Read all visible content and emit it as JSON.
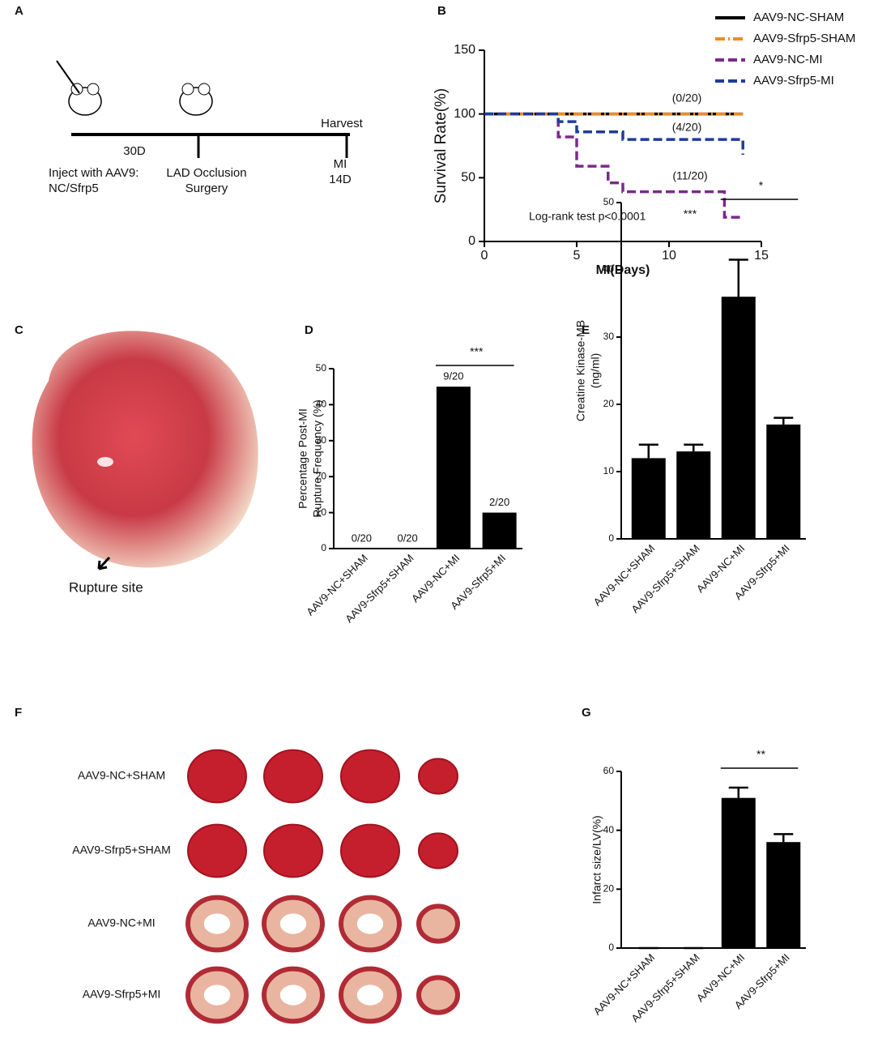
{
  "panel_labels": [
    "A",
    "B",
    "C",
    "D",
    "E",
    "F",
    "G"
  ],
  "timeline": {
    "labels": [
      "30D",
      "Inject with AAV9:",
      "NC/Sfrp5",
      "LAD Occlusion",
      "Surgery",
      "Harvest",
      "MI",
      "14D"
    ]
  },
  "photo_c": {
    "label": "Rupture site"
  },
  "photo_f": {
    "rows": [
      "AAV9-NC+SHAM",
      "AAV9-Sfrp5+SHAM",
      "AAV9-NC+MI",
      "AAV9-Sfrp5+MI"
    ]
  },
  "chart_data": [
    {
      "type": "line",
      "xlabel": "MI(Days)",
      "ylabel": "Survival Rate(%)",
      "xlim": [
        0,
        15
      ],
      "xticks": [
        0,
        5,
        10,
        15
      ],
      "ylim": [
        0,
        150
      ],
      "yticks": [
        0,
        50,
        100,
        150
      ],
      "legend": "top-right",
      "annotations": [
        "(0/20)",
        "(4/20)",
        "(11/20)",
        "Log-rank test p<0.0001",
        "***"
      ],
      "series": [
        {
          "name": "AAV9-NC-SHAM",
          "color": "#000000",
          "style": "solid",
          "x": [
            0,
            14
          ],
          "values": [
            100,
            100
          ]
        },
        {
          "name": "AAV9-Sfrp5-SHAM",
          "color": "#f08a24",
          "style": "dashdot",
          "x": [
            0,
            14
          ],
          "values": [
            100,
            100
          ]
        },
        {
          "name": "AAV9-NC-MI",
          "color": "#7b2a8b",
          "style": "dashed",
          "x": [
            0,
            4,
            4,
            5,
            5,
            6.7,
            6.7,
            7.5,
            7.5,
            13,
            13,
            14
          ],
          "values": [
            100,
            100,
            82,
            82,
            59,
            59,
            46,
            46,
            39,
            39,
            19,
            19
          ]
        },
        {
          "name": "AAV9-Sfrp5-MI",
          "color": "#1f3c99",
          "style": "dashed",
          "x": [
            0,
            4,
            4,
            5,
            5,
            7.5,
            7.5,
            14,
            14
          ],
          "values": [
            100,
            100,
            94,
            94,
            86,
            86,
            80,
            80,
            68
          ]
        }
      ]
    },
    {
      "type": "bar",
      "ylabel": [
        "Percentage Post-MI",
        "Rupture Frequency (%)"
      ],
      "color": "#000000",
      "categories": [
        "AAV9-NC+SHAM",
        "AAV9-Sfrp5+SHAM",
        "AAV9-NC+MI",
        "AAV9-Sfrp5+MI"
      ],
      "values": [
        0,
        0,
        45,
        10
      ],
      "value_labels": [
        "0/20",
        "0/20",
        "9/20",
        "2/20"
      ],
      "ylim": [
        0,
        50
      ],
      "yticks": [
        0,
        10,
        20,
        30,
        40,
        50
      ],
      "significance": "***"
    },
    {
      "type": "bar",
      "ylabel": [
        "Creatine Kinase-MB",
        "(ng/ml)"
      ],
      "color": "#000000",
      "categories": [
        "AAV9-NC+SHAM",
        "AAV9-Sfrp5+SHAM",
        "AAV9-NC+MI",
        "AAV9-Sfrp5+MI"
      ],
      "values": [
        12,
        13,
        36,
        17
      ],
      "errors": [
        2,
        1,
        5.5,
        1
      ],
      "ylim": [
        0,
        50
      ],
      "yticks": [
        0,
        10,
        20,
        30,
        40,
        50
      ],
      "significance": "*"
    },
    {
      "type": "bar",
      "ylabel": [
        "Infarct size/LV(%)"
      ],
      "color": "#000000",
      "categories": [
        "AAV9-NC+SHAM",
        "AAV9-Sfrp5+SHAM",
        "AAV9-NC+MI",
        "AAV9-Sfrp5+MI"
      ],
      "values": [
        0,
        0,
        51,
        36
      ],
      "errors": [
        0,
        0,
        3.5,
        2.7
      ],
      "ylim": [
        0,
        60
      ],
      "yticks": [
        0,
        20,
        40,
        60
      ],
      "significance": "**"
    }
  ]
}
